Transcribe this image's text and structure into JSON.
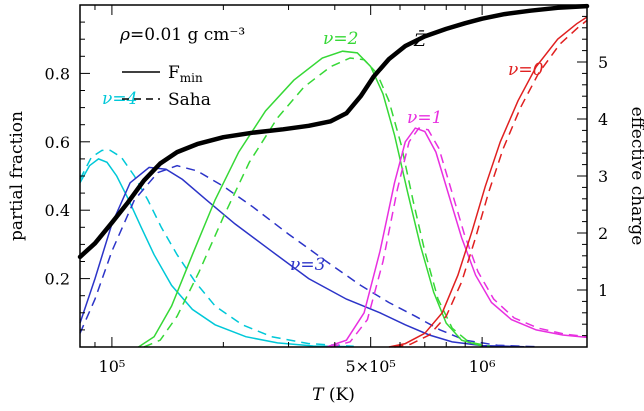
{
  "chart_data": {
    "type": "line",
    "xlabel": "T (K)",
    "ylabel": "partial fraction",
    "y2label": "effective charge",
    "annotation": "ρ=0.01 g cm⁻³",
    "x_scale": "log",
    "xlim": [
      82000,
      1920000
    ],
    "ylim": [
      0,
      1.0
    ],
    "y2lim": [
      0,
      6.0
    ],
    "x_ticks": [
      {
        "value": 100000,
        "label": "10⁵"
      },
      {
        "value": 500000,
        "label": "5×10⁵"
      },
      {
        "value": 1000000,
        "label": "10⁶"
      }
    ],
    "y_ticks": [
      {
        "value": 0.2,
        "label": "0.2"
      },
      {
        "value": 0.4,
        "label": "0.4"
      },
      {
        "value": 0.6,
        "label": "0.6"
      },
      {
        "value": 0.8,
        "label": "0.8"
      }
    ],
    "y2_ticks": [
      {
        "value": 1,
        "label": "1"
      },
      {
        "value": 2,
        "label": "2"
      },
      {
        "value": 3,
        "label": "3"
      },
      {
        "value": 4,
        "label": "4"
      },
      {
        "value": 5,
        "label": "5"
      }
    ],
    "legend": {
      "position": "top-left",
      "entries": [
        {
          "label": "F",
          "subscript": "min",
          "style": "solid"
        },
        {
          "label": "Saha",
          "style": "dashed"
        }
      ]
    },
    "series": [
      {
        "label": "ν=4",
        "color": "#00c8d8",
        "solid": [
          [
            82000,
            0.48
          ],
          [
            87000,
            0.53
          ],
          [
            92000,
            0.55
          ],
          [
            97000,
            0.54
          ],
          [
            103000,
            0.5
          ],
          [
            111000,
            0.43
          ],
          [
            120000,
            0.35
          ],
          [
            130000,
            0.27
          ],
          [
            145000,
            0.18
          ],
          [
            165000,
            0.11
          ],
          [
            190000,
            0.065
          ],
          [
            230000,
            0.03
          ],
          [
            280000,
            0.012
          ],
          [
            350000,
            0.003
          ],
          [
            450000,
            0.001
          ]
        ],
        "dashed": [
          [
            82000,
            0.49
          ],
          [
            88000,
            0.555
          ],
          [
            94000,
            0.575
          ],
          [
            99000,
            0.575
          ],
          [
            106000,
            0.555
          ],
          [
            115000,
            0.5
          ],
          [
            125000,
            0.43
          ],
          [
            136000,
            0.35
          ],
          [
            150000,
            0.27
          ],
          [
            168000,
            0.19
          ],
          [
            190000,
            0.12
          ],
          [
            225000,
            0.065
          ],
          [
            270000,
            0.03
          ],
          [
            340000,
            0.01
          ],
          [
            450000,
            0.002
          ]
        ]
      },
      {
        "label": "ν=3",
        "color": "#2c34c8",
        "solid": [
          [
            82000,
            0.07
          ],
          [
            90000,
            0.2
          ],
          [
            100000,
            0.36
          ],
          [
            112000,
            0.48
          ],
          [
            126000,
            0.525
          ],
          [
            140000,
            0.52
          ],
          [
            155000,
            0.49
          ],
          [
            180000,
            0.43
          ],
          [
            215000,
            0.36
          ],
          [
            270000,
            0.28
          ],
          [
            340000,
            0.2
          ],
          [
            430000,
            0.14
          ],
          [
            530000,
            0.1
          ],
          [
            620000,
            0.065
          ],
          [
            720000,
            0.035
          ],
          [
            830000,
            0.015
          ],
          [
            1000000,
            0.004
          ],
          [
            1300000,
            0.001
          ]
        ],
        "dashed": [
          [
            82000,
            0.04
          ],
          [
            90000,
            0.14
          ],
          [
            100000,
            0.28
          ],
          [
            115000,
            0.43
          ],
          [
            133000,
            0.51
          ],
          [
            150000,
            0.53
          ],
          [
            170000,
            0.515
          ],
          [
            200000,
            0.47
          ],
          [
            240000,
            0.41
          ],
          [
            300000,
            0.33
          ],
          [
            380000,
            0.25
          ],
          [
            470000,
            0.18
          ],
          [
            560000,
            0.13
          ],
          [
            660000,
            0.09
          ],
          [
            770000,
            0.05
          ],
          [
            900000,
            0.02
          ],
          [
            1100000,
            0.005
          ],
          [
            1400000,
            0.001
          ]
        ]
      },
      {
        "label": "ν=2",
        "color": "#36d836",
        "solid": [
          [
            118000,
            0.0
          ],
          [
            130000,
            0.03
          ],
          [
            145000,
            0.12
          ],
          [
            165000,
            0.27
          ],
          [
            190000,
            0.43
          ],
          [
            220000,
            0.57
          ],
          [
            260000,
            0.69
          ],
          [
            310000,
            0.78
          ],
          [
            370000,
            0.845
          ],
          [
            420000,
            0.865
          ],
          [
            460000,
            0.86
          ],
          [
            500000,
            0.82
          ],
          [
            540000,
            0.74
          ],
          [
            580000,
            0.62
          ],
          [
            630000,
            0.45
          ],
          [
            680000,
            0.3
          ],
          [
            740000,
            0.16
          ],
          [
            800000,
            0.07
          ],
          [
            880000,
            0.02
          ],
          [
            1000000,
            0.003
          ]
        ],
        "dashed": [
          [
            122000,
            0.0
          ],
          [
            135000,
            0.02
          ],
          [
            150000,
            0.09
          ],
          [
            172000,
            0.22
          ],
          [
            200000,
            0.38
          ],
          [
            235000,
            0.54
          ],
          [
            280000,
            0.67
          ],
          [
            330000,
            0.76
          ],
          [
            390000,
            0.82
          ],
          [
            440000,
            0.845
          ],
          [
            480000,
            0.84
          ],
          [
            520000,
            0.8
          ],
          [
            560000,
            0.72
          ],
          [
            605000,
            0.59
          ],
          [
            650000,
            0.43
          ],
          [
            700000,
            0.28
          ],
          [
            760000,
            0.14
          ],
          [
            830000,
            0.055
          ],
          [
            920000,
            0.015
          ],
          [
            1050000,
            0.002
          ]
        ]
      },
      {
        "label": "ν=1",
        "color": "#e830e0",
        "solid": [
          [
            380000,
            0.0
          ],
          [
            430000,
            0.02
          ],
          [
            480000,
            0.1
          ],
          [
            530000,
            0.28
          ],
          [
            580000,
            0.48
          ],
          [
            620000,
            0.6
          ],
          [
            660000,
            0.64
          ],
          [
            700000,
            0.63
          ],
          [
            750000,
            0.57
          ],
          [
            810000,
            0.45
          ],
          [
            880000,
            0.32
          ],
          [
            960000,
            0.21
          ],
          [
            1060000,
            0.13
          ],
          [
            1200000,
            0.08
          ],
          [
            1400000,
            0.05
          ],
          [
            1650000,
            0.035
          ],
          [
            1920000,
            0.028
          ]
        ],
        "dashed": [
          [
            390000,
            0.0
          ],
          [
            440000,
            0.015
          ],
          [
            490000,
            0.08
          ],
          [
            540000,
            0.25
          ],
          [
            590000,
            0.46
          ],
          [
            635000,
            0.6
          ],
          [
            675000,
            0.64
          ],
          [
            715000,
            0.635
          ],
          [
            765000,
            0.58
          ],
          [
            825000,
            0.46
          ],
          [
            895000,
            0.33
          ],
          [
            975000,
            0.22
          ],
          [
            1075000,
            0.14
          ],
          [
            1220000,
            0.085
          ],
          [
            1420000,
            0.055
          ],
          [
            1680000,
            0.037
          ],
          [
            1920000,
            0.03
          ]
        ]
      },
      {
        "label": "ν=0",
        "color": "#e02020",
        "solid": [
          [
            560000,
            0.0
          ],
          [
            620000,
            0.01
          ],
          [
            700000,
            0.04
          ],
          [
            780000,
            0.1
          ],
          [
            860000,
            0.21
          ],
          [
            940000,
            0.34
          ],
          [
            1020000,
            0.47
          ],
          [
            1120000,
            0.6
          ],
          [
            1250000,
            0.72
          ],
          [
            1400000,
            0.82
          ],
          [
            1600000,
            0.9
          ],
          [
            1800000,
            0.945
          ],
          [
            1920000,
            0.965
          ]
        ],
        "dashed": [
          [
            580000,
            0.0
          ],
          [
            640000,
            0.008
          ],
          [
            720000,
            0.035
          ],
          [
            800000,
            0.09
          ],
          [
            880000,
            0.19
          ],
          [
            960000,
            0.32
          ],
          [
            1040000,
            0.45
          ],
          [
            1140000,
            0.58
          ],
          [
            1270000,
            0.7
          ],
          [
            1420000,
            0.8
          ],
          [
            1620000,
            0.885
          ],
          [
            1820000,
            0.935
          ],
          [
            1920000,
            0.955
          ]
        ]
      }
    ],
    "effective_charge": {
      "label": "Z̄",
      "color": "#000000",
      "axis": "right",
      "points": [
        [
          82000,
          1.58
        ],
        [
          90000,
          1.82
        ],
        [
          100000,
          2.18
        ],
        [
          110000,
          2.52
        ],
        [
          122000,
          2.92
        ],
        [
          135000,
          3.22
        ],
        [
          150000,
          3.42
        ],
        [
          170000,
          3.56
        ],
        [
          200000,
          3.68
        ],
        [
          240000,
          3.76
        ],
        [
          290000,
          3.82
        ],
        [
          340000,
          3.88
        ],
        [
          390000,
          3.96
        ],
        [
          430000,
          4.1
        ],
        [
          470000,
          4.4
        ],
        [
          510000,
          4.75
        ],
        [
          560000,
          5.05
        ],
        [
          620000,
          5.28
        ],
        [
          700000,
          5.45
        ],
        [
          800000,
          5.58
        ],
        [
          900000,
          5.68
        ],
        [
          1000000,
          5.76
        ],
        [
          1150000,
          5.84
        ],
        [
          1350000,
          5.9
        ],
        [
          1600000,
          5.95
        ],
        [
          1920000,
          5.98
        ]
      ]
    }
  }
}
